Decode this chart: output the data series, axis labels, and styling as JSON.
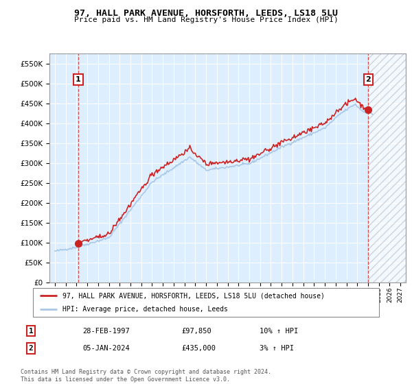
{
  "title1": "97, HALL PARK AVENUE, HORSFORTH, LEEDS, LS18 5LU",
  "title2": "Price paid vs. HM Land Registry's House Price Index (HPI)",
  "legend_line1": "97, HALL PARK AVENUE, HORSFORTH, LEEDS, LS18 5LU (detached house)",
  "legend_line2": "HPI: Average price, detached house, Leeds",
  "sale1_label": "1",
  "sale1_date": "28-FEB-1997",
  "sale1_price": "£97,850",
  "sale1_hpi": "10% ↑ HPI",
  "sale2_label": "2",
  "sale2_date": "05-JAN-2024",
  "sale2_price": "£435,000",
  "sale2_hpi": "3% ↑ HPI",
  "footer": "Contains HM Land Registry data © Crown copyright and database right 2024.\nThis data is licensed under the Open Government Licence v3.0.",
  "sale1_year": 1997.17,
  "sale1_value": 97850,
  "sale2_year": 2024.02,
  "sale2_value": 435000,
  "hpi_color": "#a8c8e8",
  "price_color": "#cc2222",
  "bg_color": "#ddeeff",
  "ylim_min": 0,
  "ylim_max": 575000,
  "xlim_min": 1994.5,
  "xlim_max": 2027.5
}
